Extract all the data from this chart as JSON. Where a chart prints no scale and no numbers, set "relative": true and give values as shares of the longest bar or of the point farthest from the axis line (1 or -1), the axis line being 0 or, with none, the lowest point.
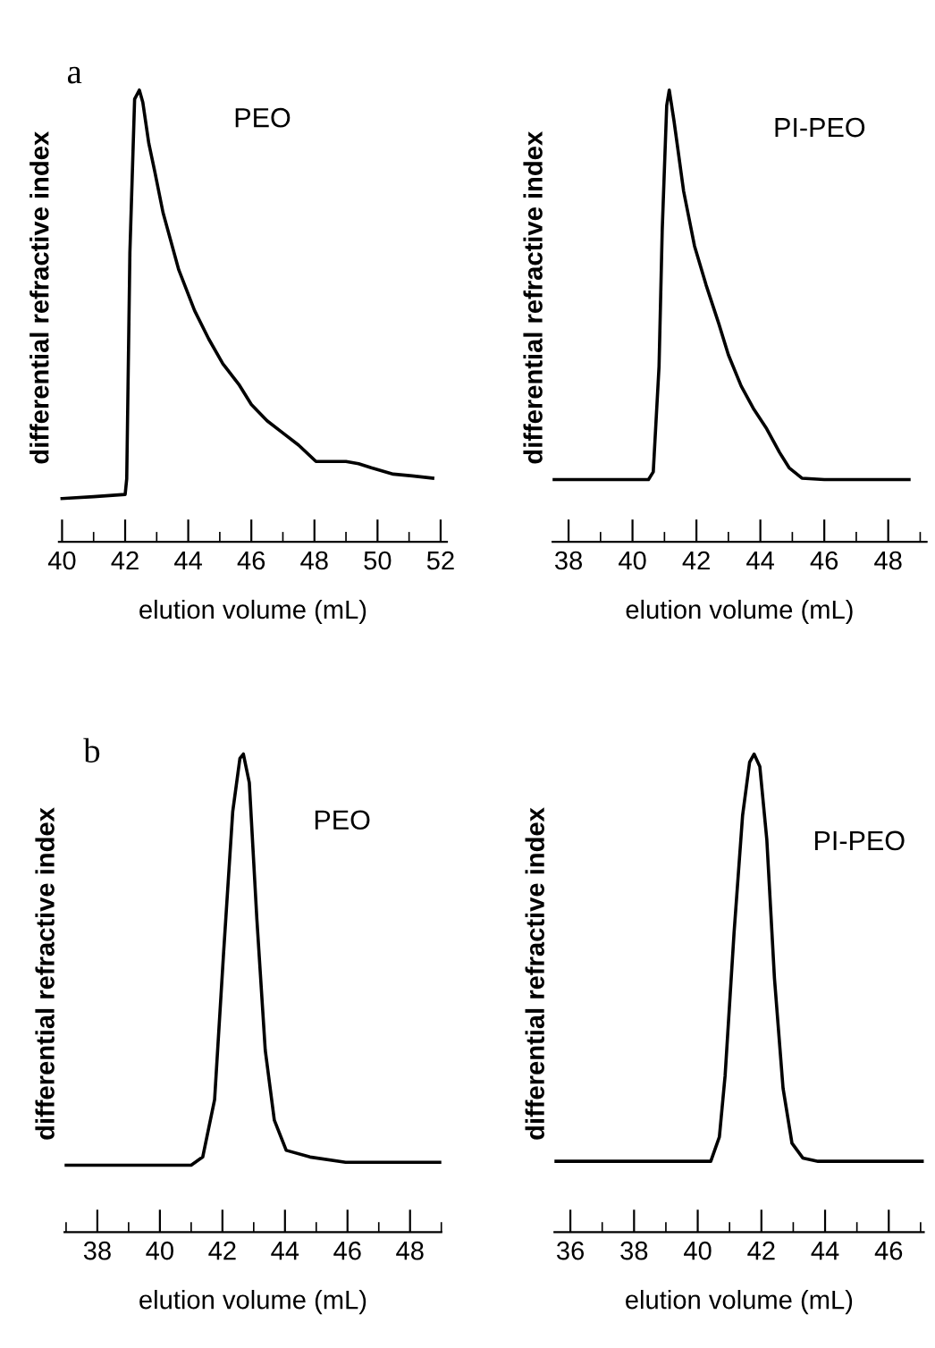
{
  "chart_data": [
    {
      "type": "line",
      "relative": true,
      "annotations": [
        "a"
      ],
      "ylabel": "differential refractive index",
      "xlabel": "elution volume (mL)",
      "xlim": [
        39.9,
        52.2
      ],
      "xticks": [
        40,
        {
          "value": 41,
          "label": null
        },
        42,
        {
          "value": 43,
          "label": null
        },
        44,
        {
          "value": 45,
          "label": null
        },
        46,
        {
          "value": 47,
          "label": null
        },
        48,
        {
          "value": 49,
          "label": null
        },
        50,
        {
          "value": 51,
          "label": null
        },
        52
      ],
      "tick_labels": "x",
      "grid": false,
      "legend": false,
      "series": [
        {
          "name": "PEO",
          "color": "#000000",
          "x": [
            40.0,
            41.0,
            42.0,
            42.05,
            42.15,
            42.3,
            42.45,
            42.56,
            42.75,
            42.94,
            43.2,
            43.7,
            44.2,
            44.65,
            45.1,
            45.6,
            46.0,
            46.5,
            47.0,
            47.5,
            48.05,
            48.5,
            49.0,
            49.4,
            49.8,
            50.5,
            51.1,
            51.75
          ],
          "values": [
            0.096,
            0.1,
            0.105,
            0.14,
            0.64,
            0.98,
            1.0,
            0.973,
            0.882,
            0.819,
            0.729,
            0.602,
            0.512,
            0.449,
            0.394,
            0.349,
            0.304,
            0.268,
            0.241,
            0.214,
            0.178,
            0.178,
            0.178,
            0.173,
            0.164,
            0.15,
            0.146,
            0.141
          ]
        }
      ]
    },
    {
      "type": "line",
      "relative": true,
      "ylabel": "differential refractive index",
      "xlabel": "elution volume (mL)",
      "xlim": [
        37.5,
        49.2
      ],
      "xticks": [
        38,
        {
          "value": 39,
          "label": null
        },
        40,
        {
          "value": 41,
          "label": null
        },
        42,
        {
          "value": 43,
          "label": null
        },
        44,
        {
          "value": 45,
          "label": null
        },
        46,
        {
          "value": 47,
          "label": null
        },
        48,
        {
          "value": 49,
          "label": null
        }
      ],
      "tick_labels": "x",
      "grid": false,
      "legend": false,
      "series": [
        {
          "name": "PI-PEO",
          "color": "#000000",
          "x": [
            37.5,
            39.0,
            40.5,
            40.65,
            40.83,
            40.93,
            41.07,
            41.15,
            41.3,
            41.6,
            41.94,
            42.3,
            42.7,
            43.0,
            43.4,
            43.8,
            44.2,
            44.6,
            44.9,
            45.3,
            46.0,
            47.0,
            48.65
          ],
          "values": [
            0.138,
            0.138,
            0.138,
            0.155,
            0.388,
            0.69,
            0.966,
            1.0,
            0.931,
            0.776,
            0.655,
            0.569,
            0.483,
            0.414,
            0.345,
            0.293,
            0.25,
            0.198,
            0.164,
            0.141,
            0.138,
            0.138,
            0.138
          ]
        }
      ]
    },
    {
      "type": "line",
      "relative": true,
      "annotations": [
        "b"
      ],
      "ylabel": "differential refractive index",
      "xlabel": "elution volume (mL)",
      "xlim": [
        36.95,
        49.0
      ],
      "xticks": [
        {
          "value": 37,
          "label": null
        },
        38,
        {
          "value": 39,
          "label": null
        },
        40,
        {
          "value": 41,
          "label": null
        },
        42,
        {
          "value": 43,
          "label": null
        },
        44,
        {
          "value": 45,
          "label": null
        },
        46,
        {
          "value": 47,
          "label": null
        },
        48,
        {
          "value": 49,
          "label": null
        }
      ],
      "tick_labels": "x",
      "grid": false,
      "legend": false,
      "series": [
        {
          "name": "PEO",
          "color": "#000000",
          "x": [
            37.0,
            39.0,
            41.0,
            41.37,
            41.75,
            42.04,
            42.33,
            42.56,
            42.67,
            42.86,
            43.1,
            43.37,
            43.66,
            44.04,
            44.8,
            45.94,
            47.5,
            49.0
          ],
          "values": [
            0.14,
            0.14,
            0.14,
            0.157,
            0.277,
            0.587,
            0.88,
            0.991,
            1.0,
            0.94,
            0.656,
            0.38,
            0.234,
            0.171,
            0.157,
            0.146,
            0.146,
            0.146
          ]
        }
      ]
    },
    {
      "type": "line",
      "relative": true,
      "ylabel": "differential refractive index",
      "xlabel": "elution volume (mL)",
      "xlim": [
        35.5,
        47.1
      ],
      "xticks": [
        36,
        {
          "value": 37,
          "label": null
        },
        38,
        {
          "value": 39,
          "label": null
        },
        40,
        {
          "value": 41,
          "label": null
        },
        42,
        {
          "value": 43,
          "label": null
        },
        44,
        {
          "value": 45,
          "label": null
        },
        46,
        {
          "value": 47,
          "label": null
        }
      ],
      "tick_labels": "x",
      "grid": false,
      "legend": false,
      "series": [
        {
          "name": "PI-PEO",
          "color": "#000000",
          "x": [
            35.5,
            38.0,
            40.41,
            40.68,
            40.86,
            41.14,
            41.41,
            41.63,
            41.77,
            41.95,
            42.17,
            42.41,
            42.68,
            42.96,
            43.3,
            43.78,
            45.5,
            47.1
          ],
          "values": [
            0.148,
            0.148,
            0.148,
            0.199,
            0.327,
            0.625,
            0.872,
            0.983,
            1.0,
            0.974,
            0.821,
            0.531,
            0.301,
            0.186,
            0.155,
            0.148,
            0.148,
            0.148
          ]
        }
      ]
    }
  ]
}
